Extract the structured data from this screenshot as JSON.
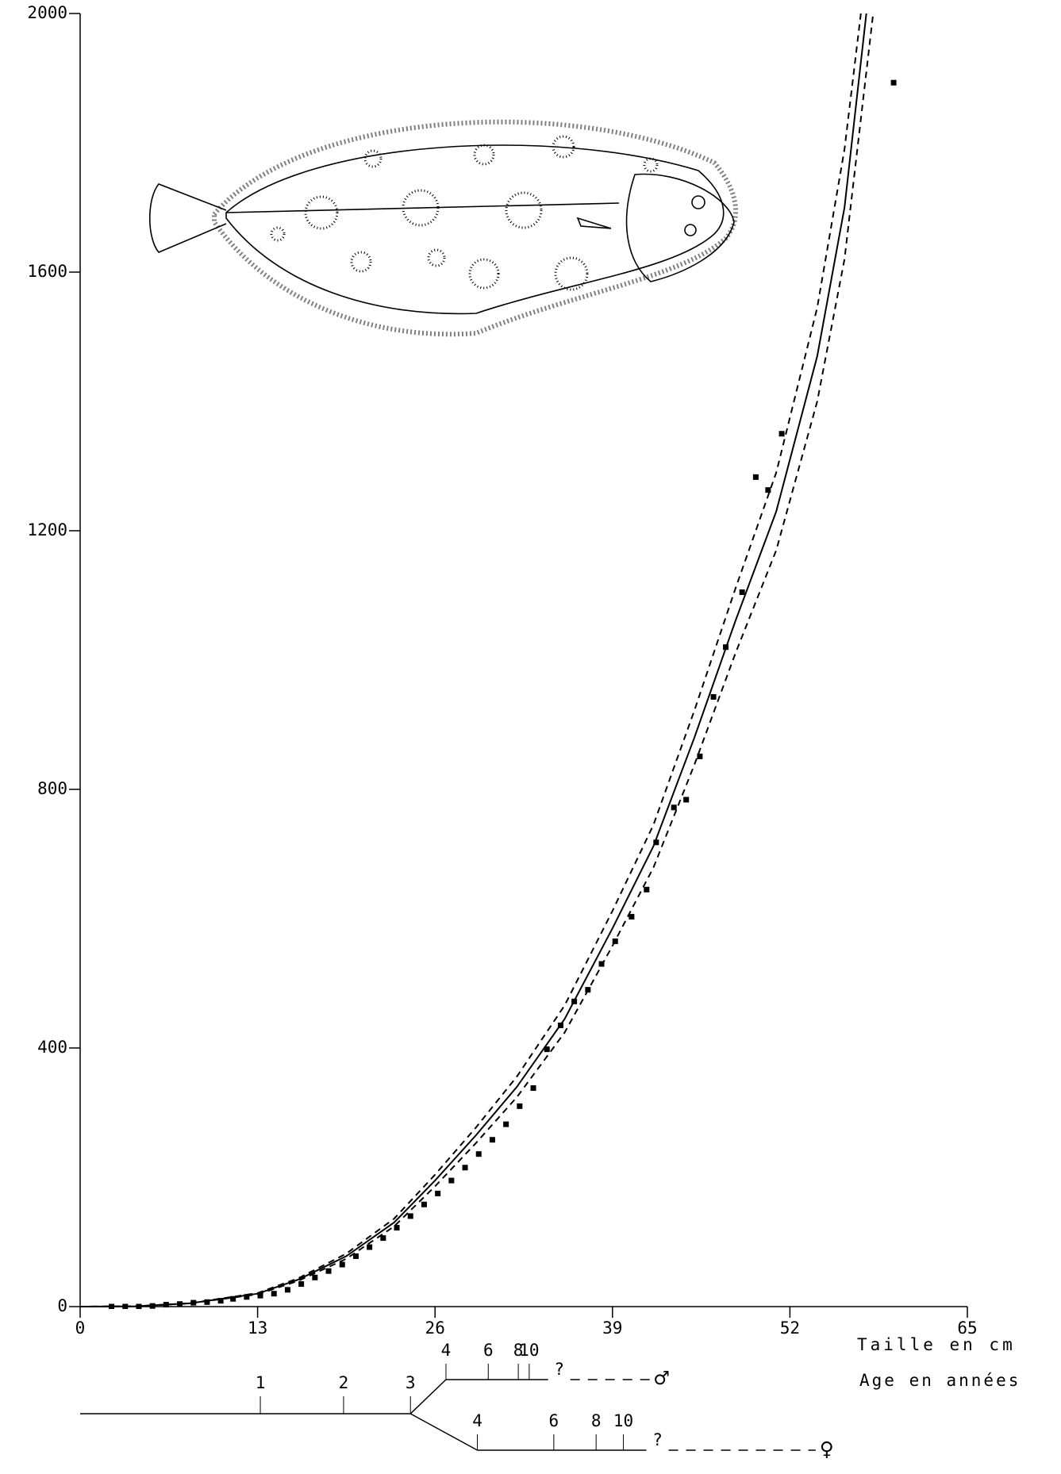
{
  "chart_data": {
    "type": "scatter",
    "xlabel": "Taille en cm",
    "xlim": [
      0,
      65
    ],
    "xticks": [
      0,
      13,
      26,
      39,
      52,
      65
    ],
    "ylim": [
      0,
      2000
    ],
    "yticks": [
      0,
      400,
      800,
      1200,
      1600,
      2000
    ],
    "grid": false,
    "points": {
      "color": "#000000",
      "x": [
        2.3,
        3.3,
        4.3,
        5.3,
        6.3,
        7.3,
        8.3,
        9.3,
        10.3,
        11.2,
        12.2,
        13.2,
        14.2,
        15.2,
        16.2,
        17.2,
        18.2,
        19.2,
        20.2,
        21.2,
        22.2,
        23.2,
        24.2,
        25.2,
        26.2,
        27.2,
        28.2,
        29.2,
        30.2,
        31.2,
        32.2,
        33.2,
        34.2,
        35.2,
        36.2,
        37.2,
        38.2,
        39.2,
        40.4,
        41.5,
        42.2,
        43.5,
        44.4,
        45.4,
        46.4,
        47.3,
        48.5,
        49.5,
        50.4,
        51.4,
        59.6
      ],
      "values": [
        0,
        0,
        0,
        1,
        3,
        4,
        6,
        7,
        9,
        12,
        15,
        17,
        20,
        26,
        35,
        45,
        55,
        65,
        78,
        92,
        106,
        122,
        140,
        158,
        175,
        195,
        215,
        236,
        258,
        282,
        310,
        338,
        398,
        435,
        472,
        490,
        530,
        565,
        603,
        645,
        718,
        772,
        784,
        851,
        943,
        1020,
        1105,
        1283,
        1263,
        1350,
        1893
      ]
    },
    "curves": [
      {
        "style": "solid",
        "color": "#000000",
        "x": [
          0,
          4,
          8,
          13,
          16,
          19.5,
          23,
          26,
          29,
          32,
          35.5,
          39,
          42,
          45,
          48,
          51,
          54,
          56,
          57.6
        ],
        "values": [
          0,
          0.5,
          5,
          20,
          42,
          78,
          130,
          195,
          265,
          340,
          445,
          585,
          712,
          880,
          1060,
          1230,
          1470,
          1700,
          2000
        ]
      },
      {
        "style": "dashed",
        "color": "#000000",
        "x": [
          0,
          4,
          8,
          13,
          16,
          19.5,
          23,
          26,
          29,
          32,
          35.5,
          39,
          42,
          45,
          48,
          51,
          54,
          56,
          57.2
        ],
        "values": [
          0,
          0.5,
          5,
          21,
          44,
          82,
          136,
          204,
          277,
          356,
          466,
          612,
          745,
          922,
          1110,
          1290,
          1545,
          1790,
          2000
        ]
      },
      {
        "style": "dashed",
        "color": "#000000",
        "x": [
          0,
          4,
          8,
          13,
          16,
          19.5,
          23,
          26,
          29,
          32,
          35.5,
          39,
          42,
          45,
          48,
          51,
          54,
          56,
          58.1
        ],
        "values": [
          0,
          0.5,
          5,
          19,
          40,
          74,
          124,
          186,
          253,
          324,
          424,
          558,
          679,
          838,
          1010,
          1170,
          1400,
          1620,
          2000
        ]
      }
    ],
    "age_diagram": {
      "title": "Age en années",
      "common": {
        "labels": [
          "1",
          "2",
          "3"
        ],
        "x": [
          13.2,
          19.3,
          24.2
        ]
      },
      "male": {
        "labels": [
          "4",
          "6",
          "8",
          "10",
          "?"
        ],
        "x": [
          26.8,
          29.9,
          32.1,
          32.9,
          35.1
        ],
        "symbol": "♂",
        "symbol_x": 42.6
      },
      "female": {
        "labels": [
          "4",
          "6",
          "8",
          "10",
          "?"
        ],
        "x": [
          29.1,
          34.7,
          37.8,
          39.8,
          42.3
        ],
        "symbol": "♀",
        "symbol_x": 54.7
      }
    }
  }
}
